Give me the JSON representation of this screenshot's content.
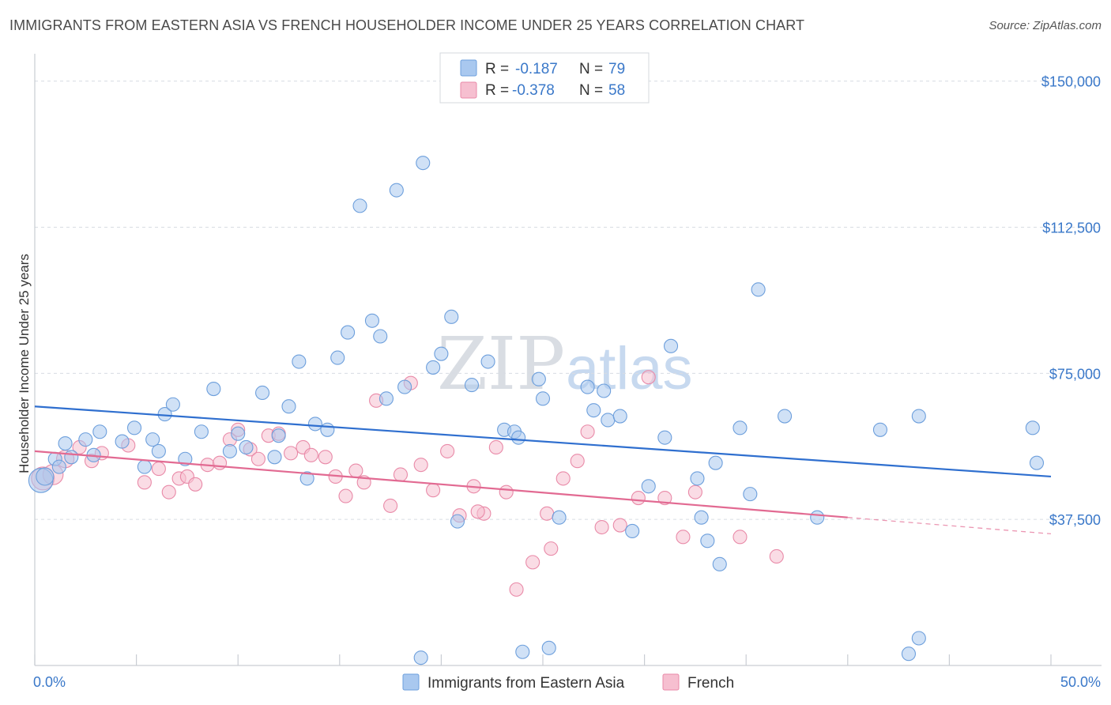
{
  "title": "IMMIGRANTS FROM EASTERN ASIA VS FRENCH HOUSEHOLDER INCOME UNDER 25 YEARS CORRELATION CHART",
  "source": "Source: ZipAtlas.com",
  "watermark": {
    "part1": "ZIP",
    "part2": "atlas"
  },
  "colors": {
    "blue_fill": "#a9c8ef",
    "blue_stroke": "#6d9fdc",
    "blue_line": "#2f6fcf",
    "pink_fill": "#f6bfd0",
    "pink_stroke": "#e98aa8",
    "pink_line": "#e26a92",
    "grid": "#d8dce3",
    "axis_text": "#3a78c9"
  },
  "legend": {
    "rows": [
      {
        "r_label": "R =",
        "r_value": "-0.187",
        "n_label": "N =",
        "n_value": "79",
        "series": "blue"
      },
      {
        "r_label": "R =",
        "r_value": "-0.378",
        "n_label": "N =",
        "n_value": "58",
        "series": "pink"
      }
    ]
  },
  "chart_data": {
    "type": "scatter",
    "xlabel": "",
    "ylabel": "Householder Income Under 25 years",
    "xlim": [
      0,
      50
    ],
    "ylim": [
      0,
      155000
    ],
    "x_tick_labels": [
      "0.0%",
      "50.0%"
    ],
    "y_ticks": [
      37500,
      75000,
      112500,
      150000
    ],
    "y_tick_labels": [
      "$37,500",
      "$75,000",
      "$112,500",
      "$150,000"
    ],
    "grid": true,
    "legend_placement": "top-center",
    "series": [
      {
        "name": "Immigrants from Eastern Asia",
        "color": "blue",
        "trend": {
          "x": [
            0,
            50
          ],
          "y": [
            66500,
            48500
          ]
        },
        "points": [
          [
            0.3,
            47500,
            1.8
          ],
          [
            0.5,
            48500,
            1.3
          ],
          [
            1.0,
            53000,
            1
          ],
          [
            1.5,
            57000,
            1
          ],
          [
            1.8,
            53500,
            1
          ],
          [
            2.5,
            58000,
            1
          ],
          [
            2.9,
            54000,
            1
          ],
          [
            3.2,
            60000,
            1
          ],
          [
            4.9,
            61000,
            1
          ],
          [
            5.8,
            58000,
            1
          ],
          [
            6.1,
            55000,
            1
          ],
          [
            7.4,
            53000,
            1
          ],
          [
            5.4,
            51000,
            1
          ],
          [
            6.4,
            64500,
            1
          ],
          [
            6.8,
            67000,
            1
          ],
          [
            8.2,
            60000,
            1
          ],
          [
            8.8,
            71000,
            1
          ],
          [
            9.6,
            55000,
            1
          ],
          [
            10.0,
            59500,
            1
          ],
          [
            10.4,
            56000,
            1
          ],
          [
            11.2,
            70000,
            1
          ],
          [
            11.8,
            53500,
            1
          ],
          [
            12.0,
            59000,
            1
          ],
          [
            12.5,
            66500,
            1
          ],
          [
            13.0,
            78000,
            1
          ],
          [
            13.4,
            48000,
            1
          ],
          [
            13.8,
            62000,
            1
          ],
          [
            14.4,
            60500,
            1
          ],
          [
            14.9,
            79000,
            1
          ],
          [
            15.4,
            85500,
            1
          ],
          [
            16.0,
            118000,
            1
          ],
          [
            16.6,
            88500,
            1
          ],
          [
            17.0,
            84500,
            1
          ],
          [
            17.3,
            68500,
            1
          ],
          [
            18.2,
            71500,
            1
          ],
          [
            17.8,
            122000,
            1
          ],
          [
            19.1,
            129000,
            1
          ],
          [
            19.6,
            76500,
            1
          ],
          [
            20.0,
            80000,
            1
          ],
          [
            20.5,
            89500,
            1
          ],
          [
            20.8,
            37000,
            1
          ],
          [
            21.5,
            72000,
            1
          ],
          [
            22.3,
            78000,
            1
          ],
          [
            23.1,
            60500,
            1
          ],
          [
            23.6,
            60000,
            1
          ],
          [
            23.8,
            58500,
            1
          ],
          [
            24.8,
            73500,
            1
          ],
          [
            25.0,
            68500,
            1
          ],
          [
            25.3,
            4500,
            1
          ],
          [
            25.8,
            38000,
            1
          ],
          [
            27.2,
            71500,
            1
          ],
          [
            27.5,
            65500,
            1
          ],
          [
            28.0,
            70500,
            1
          ],
          [
            28.2,
            63000,
            1
          ],
          [
            28.8,
            64000,
            1
          ],
          [
            29.4,
            34500,
            1
          ],
          [
            30.2,
            46000,
            1
          ],
          [
            31.0,
            58500,
            1
          ],
          [
            31.3,
            82000,
            1
          ],
          [
            32.6,
            48000,
            1
          ],
          [
            32.8,
            38000,
            1
          ],
          [
            33.1,
            32000,
            1
          ],
          [
            33.5,
            52000,
            1
          ],
          [
            33.7,
            26000,
            1
          ],
          [
            34.7,
            61000,
            1
          ],
          [
            35.2,
            44000,
            1
          ],
          [
            36.9,
            64000,
            1
          ],
          [
            38.5,
            38000,
            1
          ],
          [
            41.6,
            60500,
            1
          ],
          [
            43.5,
            64000,
            1
          ],
          [
            43.0,
            3000,
            1
          ],
          [
            43.5,
            7000,
            1
          ],
          [
            35.6,
            96500,
            1
          ],
          [
            49.1,
            61000,
            1
          ],
          [
            49.3,
            52000,
            1
          ],
          [
            24.0,
            3500,
            1
          ],
          [
            19.0,
            2000,
            1
          ],
          [
            1.2,
            51000,
            1
          ],
          [
            4.3,
            57500,
            1
          ]
        ]
      },
      {
        "name": "French",
        "color": "pink",
        "trend": {
          "x": [
            0,
            40
          ],
          "y": [
            55000,
            38000
          ]
        },
        "trend_dashed": {
          "x": [
            40,
            50
          ],
          "y": [
            38000,
            33800
          ]
        },
        "points": [
          [
            0.4,
            48000,
            1.7
          ],
          [
            0.9,
            49000,
            1.5
          ],
          [
            1.5,
            53000,
            1.3
          ],
          [
            2.2,
            56000,
            1
          ],
          [
            2.8,
            52500,
            1
          ],
          [
            3.3,
            54500,
            1
          ],
          [
            4.6,
            56500,
            1
          ],
          [
            5.4,
            47000,
            1
          ],
          [
            6.1,
            50500,
            1
          ],
          [
            6.6,
            44500,
            1
          ],
          [
            7.1,
            48000,
            1
          ],
          [
            7.5,
            48500,
            1
          ],
          [
            7.9,
            46500,
            1
          ],
          [
            8.5,
            51500,
            1
          ],
          [
            9.1,
            52000,
            1
          ],
          [
            9.6,
            58000,
            1
          ],
          [
            10.0,
            60500,
            1
          ],
          [
            10.6,
            55500,
            1
          ],
          [
            11.5,
            59000,
            1
          ],
          [
            12.0,
            59500,
            1
          ],
          [
            12.6,
            54500,
            1
          ],
          [
            13.2,
            56000,
            1
          ],
          [
            13.6,
            54000,
            1
          ],
          [
            14.3,
            53500,
            1
          ],
          [
            14.8,
            48500,
            1
          ],
          [
            15.3,
            43500,
            1
          ],
          [
            15.8,
            50000,
            1
          ],
          [
            16.2,
            47000,
            1
          ],
          [
            16.8,
            68000,
            1
          ],
          [
            17.5,
            41000,
            1
          ],
          [
            18.0,
            49000,
            1
          ],
          [
            18.5,
            72500,
            1
          ],
          [
            19.0,
            51500,
            1
          ],
          [
            19.6,
            45000,
            1
          ],
          [
            20.3,
            55000,
            1
          ],
          [
            20.9,
            38500,
            1
          ],
          [
            21.6,
            46000,
            1
          ],
          [
            22.1,
            39000,
            1
          ],
          [
            22.7,
            56000,
            1
          ],
          [
            23.2,
            44500,
            1
          ],
          [
            23.7,
            19500,
            1
          ],
          [
            24.5,
            26500,
            1
          ],
          [
            25.4,
            30000,
            1
          ],
          [
            26.0,
            48000,
            1
          ],
          [
            26.7,
            52500,
            1
          ],
          [
            27.2,
            60000,
            1
          ],
          [
            27.9,
            35500,
            1
          ],
          [
            28.8,
            36000,
            1
          ],
          [
            29.7,
            43000,
            1
          ],
          [
            30.2,
            74000,
            1
          ],
          [
            31.0,
            43000,
            1
          ],
          [
            31.9,
            33000,
            1
          ],
          [
            32.5,
            44500,
            1
          ],
          [
            34.7,
            33000,
            1
          ],
          [
            36.5,
            28000,
            1
          ],
          [
            21.8,
            39500,
            1
          ],
          [
            25.2,
            39000,
            1
          ],
          [
            11.0,
            53000,
            1
          ]
        ]
      }
    ]
  },
  "bottom_legend": [
    {
      "label": "Immigrants from Eastern Asia",
      "series": "blue"
    },
    {
      "label": "French",
      "series": "pink"
    }
  ]
}
